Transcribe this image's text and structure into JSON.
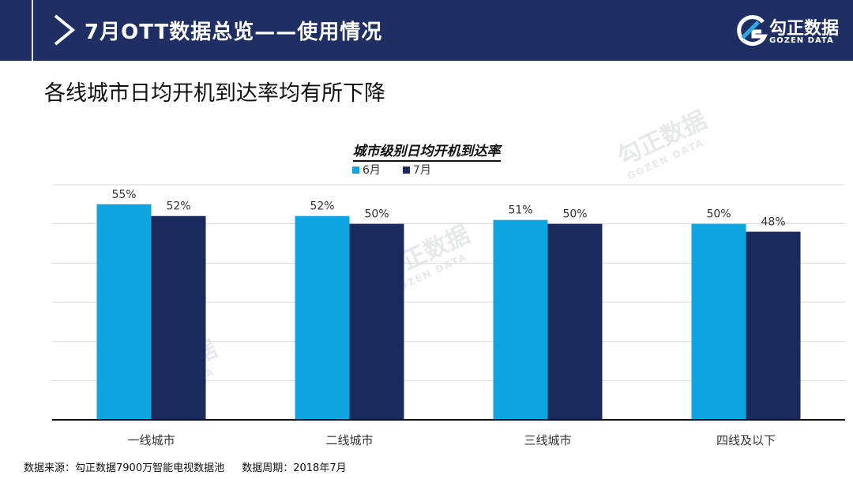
{
  "header": {
    "title": "7月OTT数据总览——使用情况",
    "logo_name": "勾正数据",
    "logo_sub": "GOZEN DATA"
  },
  "subtitle": "各线城市日均开机到达率均有所下降",
  "watermark": {
    "cn": "勾正数据",
    "en": "GOZEN DATA"
  },
  "colors": {
    "header_bg": "#1f2f63",
    "june": "#0ea5e0",
    "july": "#1b2a5c"
  },
  "chart_data": {
    "type": "bar",
    "title": "城市级别日均开机到达率",
    "categories": [
      "一线城市",
      "二线城市",
      "三线城市",
      "四线及以下"
    ],
    "series": [
      {
        "name": "6月",
        "values": [
          55,
          52,
          51,
          50
        ],
        "labels": [
          "55%",
          "52%",
          "51%",
          "50%"
        ],
        "color": "#0ea5e0"
      },
      {
        "name": "7月",
        "values": [
          52,
          50,
          50,
          48
        ],
        "labels": [
          "52%",
          "50%",
          "50%",
          "48%"
        ],
        "color": "#1b2a5c"
      }
    ],
    "ylim": [
      0,
      60
    ],
    "grid": true,
    "legend_position": "top-center"
  },
  "footer": {
    "source": "数据来源：勾正数据7900万智能电视数据池",
    "period": "数据周期：2018年7月"
  }
}
